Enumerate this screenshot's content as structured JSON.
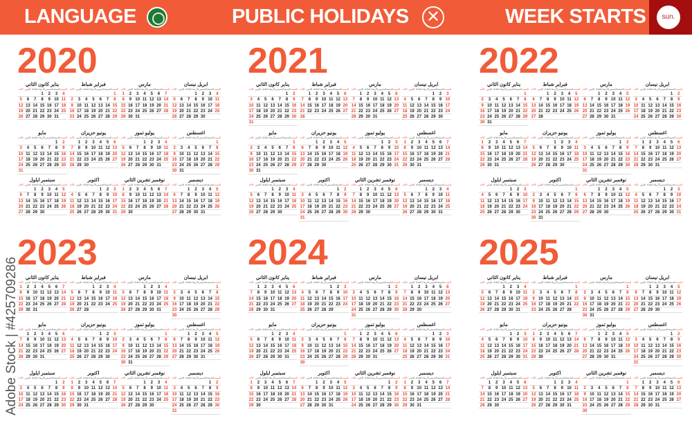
{
  "header": {
    "language_label": "LANGUAGE",
    "language_icon": "arab-league-flag-icon",
    "holidays_label": "PUBLIC HOLIDAYS",
    "holidays_icon": "x-circle-icon",
    "week_label": "WEEK STARTS",
    "week_value": "sun.",
    "color_bg": "#f15b38",
    "color_week": "#a50e0e"
  },
  "years": [
    2020,
    2021,
    2022,
    2023,
    2024,
    2025
  ],
  "months": [
    "يناير كانون الثاني",
    "فبراير شباط",
    "مارس",
    "ابريل نيسان",
    "مايو",
    "يونيو حزيران",
    "يوليو تموز",
    "اغسطس",
    "سبتمبر ايلول",
    "اكتوبر",
    "نوفمبر تشرين الثاني",
    "ديسمبر"
  ],
  "weekdays": [
    "الأحد",
    "الإثنين",
    "الثلاثاء",
    "الأربعاء",
    "الخميس",
    "الجمعة",
    "السبت"
  ],
  "week_start": "sunday",
  "accent": "#f15b38",
  "watermark": "Adobe Stock | #425709286"
}
